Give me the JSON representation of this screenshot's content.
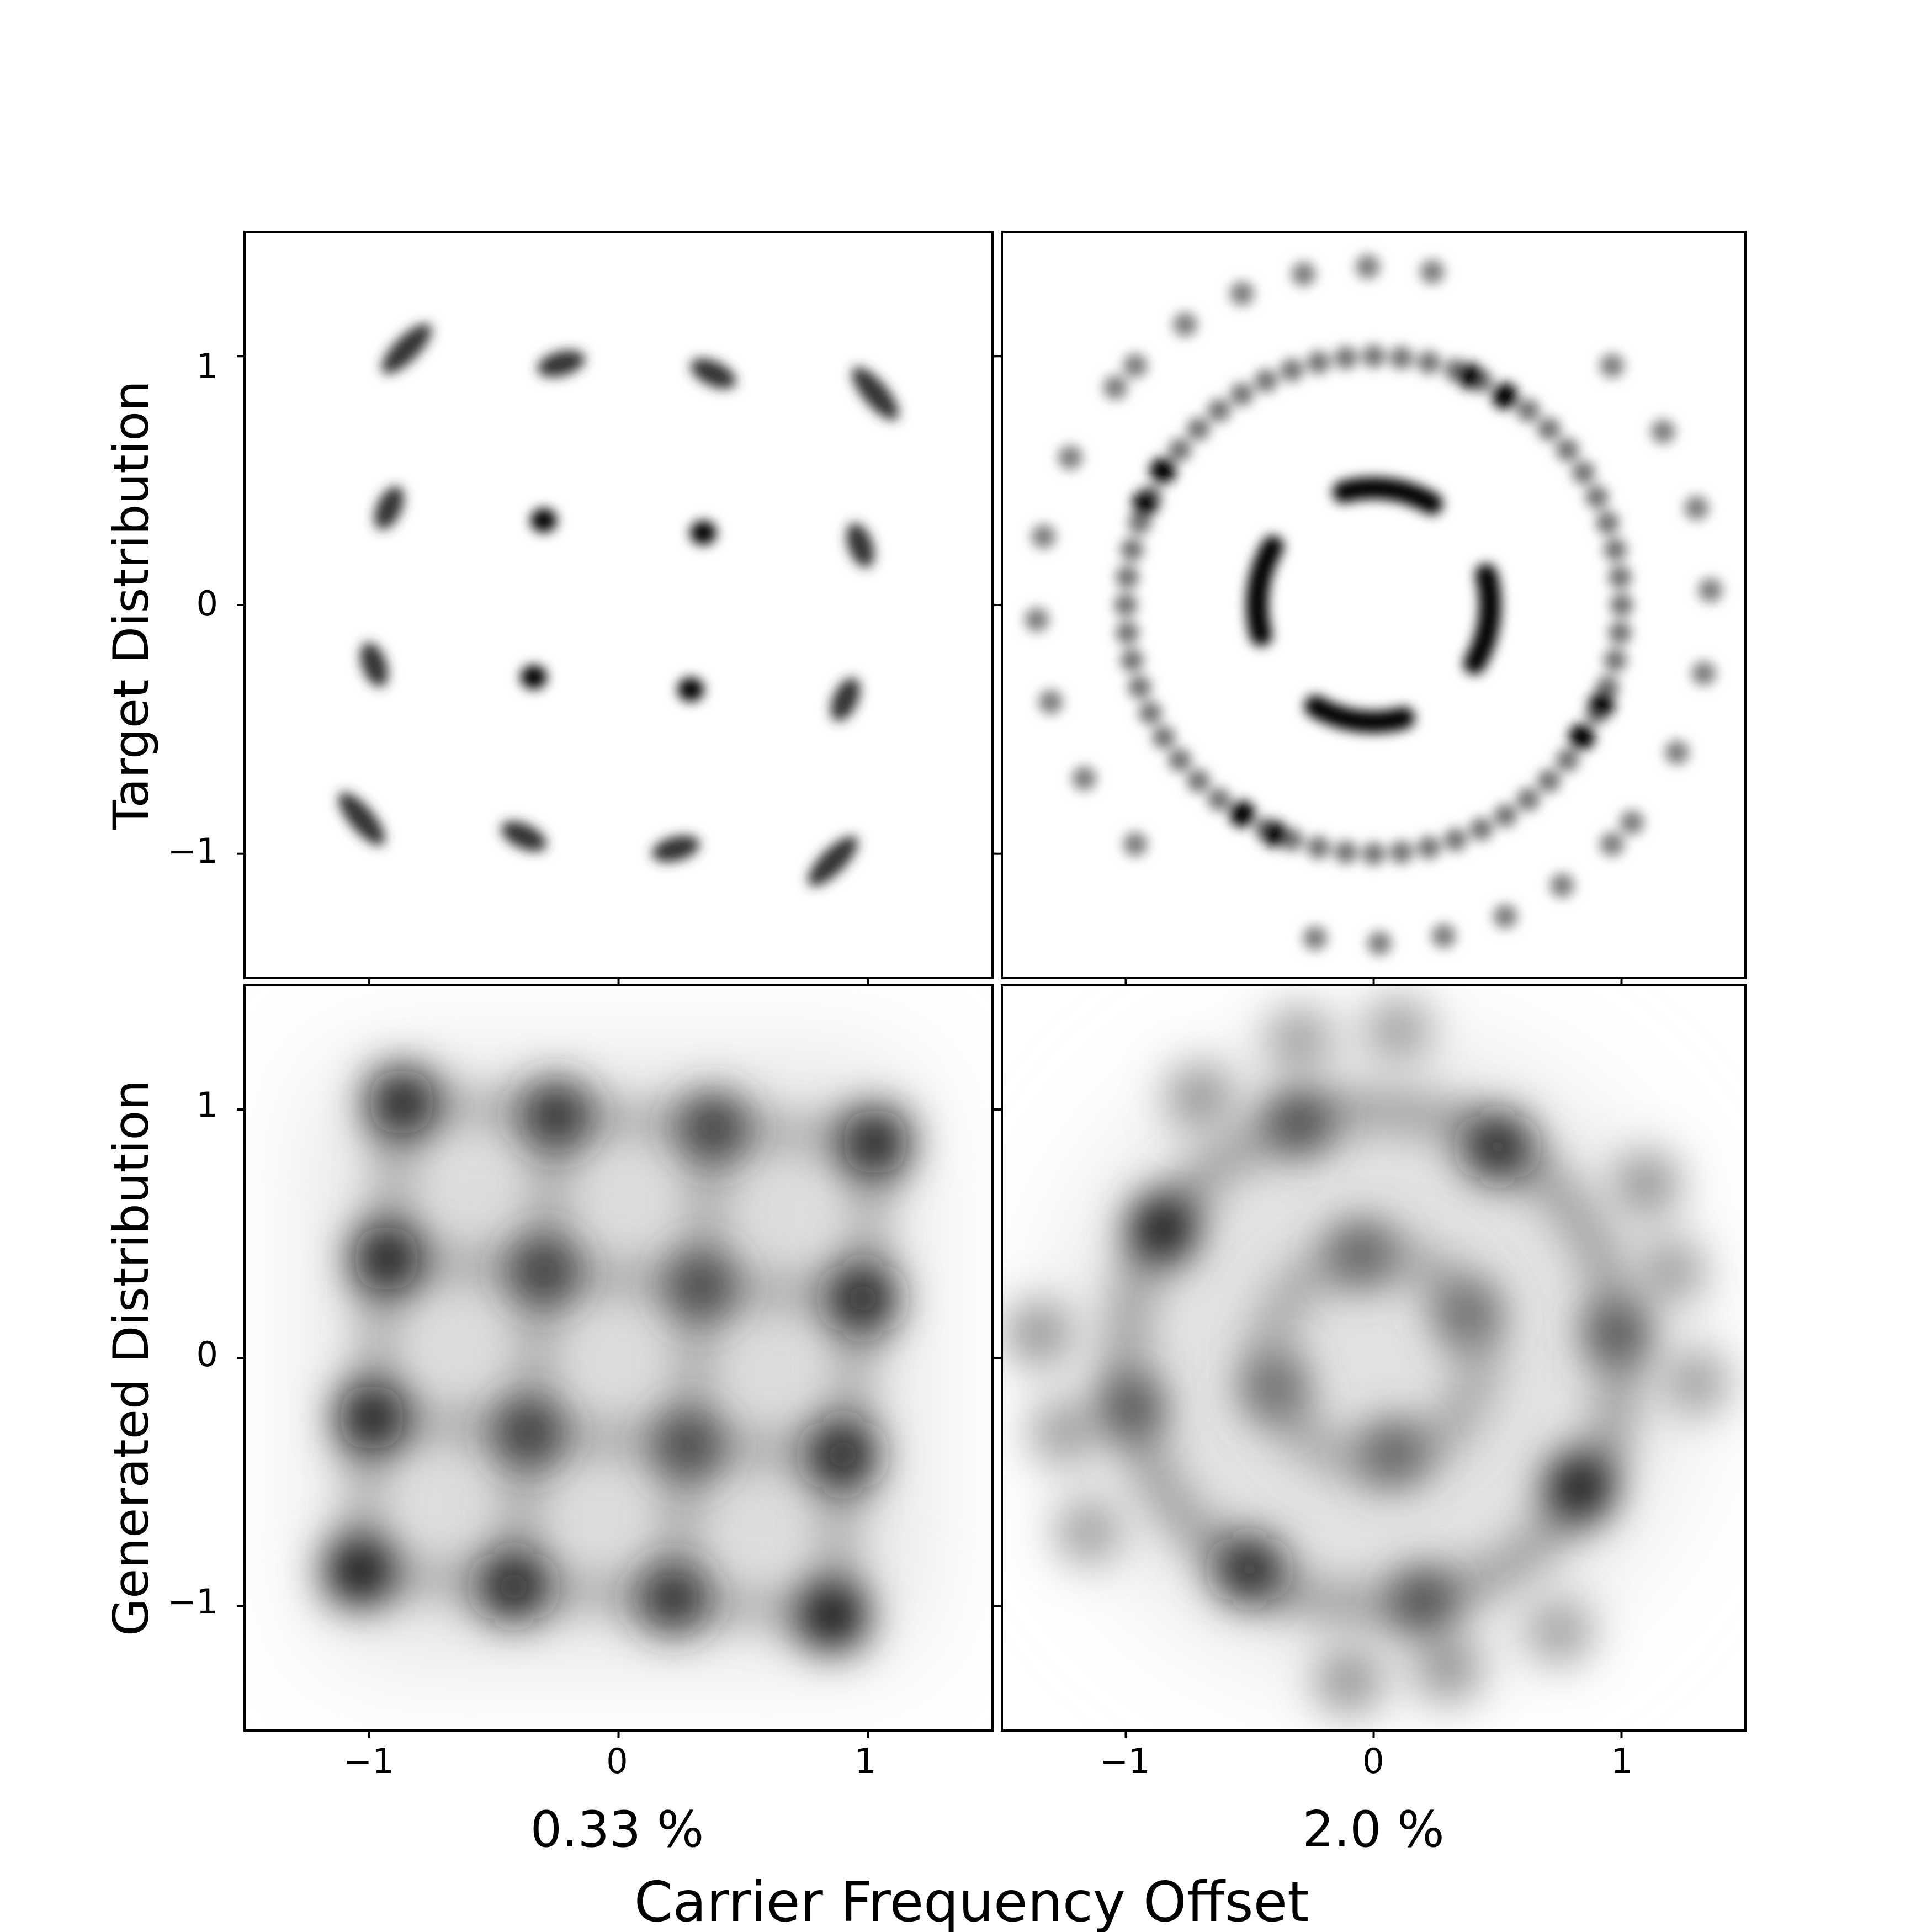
{
  "figure": {
    "row_labels": [
      "Target Distribution",
      "Generated Distribution"
    ],
    "column_labels": [
      "0.33 %",
      "2.0 %"
    ],
    "shared_xlabel": "Carrier Frequency Offset"
  },
  "chart_data": [
    {
      "type": "heatmap",
      "panel": "target-0.33",
      "row_label": "Target Distribution",
      "column_label": "0.33 %",
      "xlim": [
        -1.5,
        1.5
      ],
      "ylim": [
        -1.5,
        1.5
      ],
      "yticks": [
        -1,
        0,
        1
      ],
      "ytick_labels": [
        "−1",
        "0",
        "1"
      ],
      "xticks": [
        -1,
        0,
        1
      ],
      "colormap": "grayscale (white = 0, black = max density)",
      "description_points": "16 clusters of a 4x4 grid, rotated slightly by the frequency offset",
      "points": [
        {
          "x": -0.85,
          "y": 1.03,
          "angle": 45,
          "len": 0.16,
          "intensity": 0.8
        },
        {
          "x": -0.23,
          "y": 0.97,
          "angle": 15,
          "len": 0.09,
          "intensity": 0.8
        },
        {
          "x": 0.38,
          "y": 0.93,
          "angle": -25,
          "len": 0.09,
          "intensity": 0.8
        },
        {
          "x": 1.03,
          "y": 0.85,
          "angle": -50,
          "len": 0.16,
          "intensity": 0.8
        },
        {
          "x": -0.92,
          "y": 0.39,
          "angle": 65,
          "len": 0.08,
          "intensity": 0.8
        },
        {
          "x": -0.3,
          "y": 0.34,
          "angle": 0,
          "len": 0.0,
          "intensity": 1.0
        },
        {
          "x": 0.34,
          "y": 0.29,
          "angle": 0,
          "len": 0.0,
          "intensity": 1.0
        },
        {
          "x": 0.97,
          "y": 0.24,
          "angle": -70,
          "len": 0.08,
          "intensity": 0.8
        },
        {
          "x": -0.98,
          "y": -0.24,
          "angle": -70,
          "len": 0.08,
          "intensity": 0.8
        },
        {
          "x": -0.34,
          "y": -0.29,
          "angle": 0,
          "len": 0.0,
          "intensity": 1.0
        },
        {
          "x": 0.29,
          "y": -0.34,
          "angle": 0,
          "len": 0.0,
          "intensity": 1.0
        },
        {
          "x": 0.91,
          "y": -0.38,
          "angle": 65,
          "len": 0.08,
          "intensity": 0.8
        },
        {
          "x": -1.03,
          "y": -0.86,
          "angle": -50,
          "len": 0.16,
          "intensity": 0.8
        },
        {
          "x": -0.38,
          "y": -0.93,
          "angle": -25,
          "len": 0.09,
          "intensity": 0.8
        },
        {
          "x": 0.23,
          "y": -0.98,
          "angle": 15,
          "len": 0.09,
          "intensity": 0.8
        },
        {
          "x": 0.86,
          "y": -1.03,
          "angle": 45,
          "len": 0.16,
          "intensity": 0.8
        }
      ]
    },
    {
      "type": "heatmap",
      "panel": "target-2.0",
      "row_label": "Target Distribution",
      "column_label": "2.0 %",
      "xlim": [
        -1.5,
        1.5
      ],
      "ylim": [
        -1.5,
        1.5
      ],
      "yticks": [
        -1,
        0,
        1
      ],
      "xticks": [
        -1,
        0,
        1
      ],
      "colormap": "grayscale (white = 0, black = max density)",
      "description_points": "16-QAM symbols smeared into arcs on three rings (r≈0.47, r≈1.0, r≈1.35)",
      "arcs": [
        {
          "r": 0.47,
          "from_deg": 60,
          "to_deg": 105,
          "intensity": 1.0
        },
        {
          "r": 0.47,
          "from_deg": -30,
          "to_deg": 15,
          "intensity": 1.0
        },
        {
          "r": 0.47,
          "from_deg": 150,
          "to_deg": 195,
          "intensity": 1.0
        },
        {
          "r": 0.47,
          "from_deg": 240,
          "to_deg": 285,
          "intensity": 1.0
        }
      ],
      "rings": [
        {
          "r": 1.0,
          "count": 56,
          "intensity": 0.55
        },
        {
          "r": 1.36,
          "count": 0,
          "intensity": 0.5
        }
      ],
      "outer_arcs": [
        {
          "r": 1.36,
          "from_deg": 80,
          "to_deg": 135,
          "n": 6,
          "intensity": 0.5
        },
        {
          "r": 1.36,
          "from_deg": -40,
          "to_deg": 45,
          "n": 7,
          "intensity": 0.5
        },
        {
          "r": 1.36,
          "from_deg": 140,
          "to_deg": 225,
          "n": 7,
          "intensity": 0.5
        },
        {
          "r": 1.36,
          "from_deg": 260,
          "to_deg": 315,
          "n": 6,
          "intensity": 0.5
        }
      ],
      "dark_spots": [
        {
          "x": 0.39,
          "y": 0.92
        },
        {
          "x": 0.53,
          "y": 0.84
        },
        {
          "x": -0.85,
          "y": 0.54
        },
        {
          "x": -0.92,
          "y": 0.41
        },
        {
          "x": 0.92,
          "y": -0.4
        },
        {
          "x": 0.84,
          "y": -0.53
        },
        {
          "x": -0.53,
          "y": -0.84
        },
        {
          "x": -0.4,
          "y": -0.92
        }
      ]
    },
    {
      "type": "heatmap",
      "panel": "generated-0.33",
      "row_label": "Generated Distribution",
      "column_label": "0.33 %",
      "xlim": [
        -1.5,
        1.5
      ],
      "ylim": [
        -1.5,
        1.5
      ],
      "yticks": [
        -1,
        0,
        1
      ],
      "ytick_labels": [
        "−1",
        "0",
        "1"
      ],
      "xticks": [
        -1,
        0,
        1
      ],
      "xtick_labels": [
        "−1",
        "0",
        "1"
      ],
      "colormap": "grayscale (white = 0, black = max density)",
      "description_points": "4x4 grid of blurred clusters connected by faint lines",
      "points": [
        {
          "x": -0.87,
          "y": 1.03,
          "intensity": 0.95
        },
        {
          "x": -0.25,
          "y": 0.98,
          "intensity": 0.85
        },
        {
          "x": 0.38,
          "y": 0.93,
          "intensity": 0.8
        },
        {
          "x": 1.03,
          "y": 0.87,
          "intensity": 0.95
        },
        {
          "x": -0.93,
          "y": 0.4,
          "intensity": 0.95
        },
        {
          "x": -0.3,
          "y": 0.35,
          "intensity": 0.8
        },
        {
          "x": 0.33,
          "y": 0.29,
          "intensity": 0.75
        },
        {
          "x": 0.98,
          "y": 0.24,
          "intensity": 0.9
        },
        {
          "x": -0.99,
          "y": -0.24,
          "intensity": 0.95
        },
        {
          "x": -0.36,
          "y": -0.3,
          "intensity": 0.8
        },
        {
          "x": 0.28,
          "y": -0.35,
          "intensity": 0.75
        },
        {
          "x": 0.9,
          "y": -0.39,
          "intensity": 0.9
        },
        {
          "x": -1.04,
          "y": -0.86,
          "intensity": 1.0
        },
        {
          "x": -0.42,
          "y": -0.92,
          "intensity": 0.9
        },
        {
          "x": 0.22,
          "y": -0.97,
          "intensity": 0.85
        },
        {
          "x": 0.86,
          "y": -1.04,
          "intensity": 1.0
        }
      ]
    },
    {
      "type": "heatmap",
      "panel": "generated-2.0",
      "row_label": "Generated Distribution",
      "column_label": "2.0 %",
      "xlim": [
        -1.5,
        1.5
      ],
      "ylim": [
        -1.5,
        1.5
      ],
      "yticks": [
        -1,
        0,
        1
      ],
      "xticks": [
        -1,
        0,
        1
      ],
      "xtick_labels": [
        "−1",
        "0",
        "1"
      ],
      "colormap": "grayscale (white = 0, black = max density)",
      "description_points": "blurred rings (r≈0.4 and r≈1.0) plus scattered outer clusters",
      "points": [
        {
          "x": -0.85,
          "y": 0.52,
          "intensity": 1.0
        },
        {
          "x": 0.83,
          "y": -0.52,
          "intensity": 1.0
        },
        {
          "x": 0.5,
          "y": 0.85,
          "intensity": 0.9
        },
        {
          "x": -0.5,
          "y": -0.85,
          "intensity": 0.9
        },
        {
          "x": -0.3,
          "y": 0.95,
          "intensity": 0.75
        },
        {
          "x": 0.2,
          "y": -0.98,
          "intensity": 0.75
        },
        {
          "x": 0.98,
          "y": 0.1,
          "intensity": 0.7
        },
        {
          "x": -0.98,
          "y": -0.2,
          "intensity": 0.7
        },
        {
          "x": -0.7,
          "y": 1.05,
          "intensity": 0.45
        },
        {
          "x": -0.3,
          "y": 1.28,
          "intensity": 0.4
        },
        {
          "x": 0.1,
          "y": 1.32,
          "intensity": 0.4
        },
        {
          "x": 1.1,
          "y": 0.7,
          "intensity": 0.45
        },
        {
          "x": 1.2,
          "y": 0.35,
          "intensity": 0.4
        },
        {
          "x": 1.3,
          "y": -0.1,
          "intensity": 0.4
        },
        {
          "x": -1.35,
          "y": 0.1,
          "intensity": 0.45
        },
        {
          "x": -1.25,
          "y": -0.3,
          "intensity": 0.4
        },
        {
          "x": -1.15,
          "y": -0.7,
          "intensity": 0.4
        },
        {
          "x": -0.1,
          "y": -1.3,
          "intensity": 0.45
        },
        {
          "x": 0.3,
          "y": -1.25,
          "intensity": 0.45
        },
        {
          "x": 0.75,
          "y": -1.1,
          "intensity": 0.4
        },
        {
          "x": -0.05,
          "y": 0.42,
          "intensity": 0.65
        },
        {
          "x": 0.38,
          "y": 0.18,
          "intensity": 0.6
        },
        {
          "x": -0.4,
          "y": -0.12,
          "intensity": 0.6
        },
        {
          "x": 0.08,
          "y": -0.38,
          "intensity": 0.65
        }
      ],
      "rings": [
        {
          "r": 1.0,
          "intensity": 0.45
        },
        {
          "r": 0.42,
          "intensity": 0.4
        }
      ]
    }
  ]
}
